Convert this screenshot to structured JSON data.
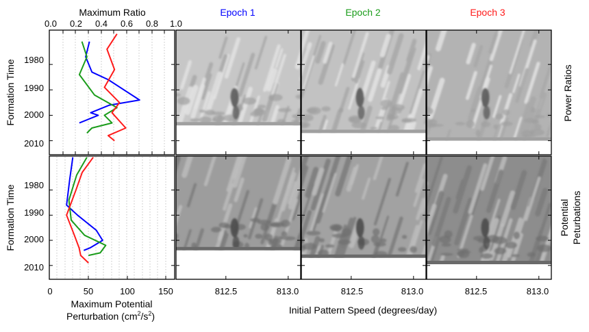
{
  "chart_data": {
    "type": "line",
    "column_titles": [
      {
        "label": "Epoch 1",
        "color": "#0000ff"
      },
      {
        "label": "Epoch 2",
        "color": "#1a9c1a"
      },
      {
        "label": "Epoch 3",
        "color": "#ff1a1a"
      }
    ],
    "row_labels": {
      "top": "Power Ratios",
      "bottom_line1": "Potential",
      "bottom_line2": "Peturbations"
    },
    "ylabel": "Formation Time",
    "y_ticks": [
      "1980",
      "1990",
      "2000",
      "2010"
    ],
    "ylim": [
      2015.5,
      1966.5
    ],
    "top_left_panel": {
      "xlabel_top": "Maximum Ratio",
      "xlim": [
        0,
        1
      ],
      "x_ticks": [
        "0.0",
        "0.2",
        "0.4",
        "0.6",
        "0.8",
        "1.0"
      ],
      "series": [
        {
          "color": "#0000ff",
          "x": [
            0.32,
            0.29,
            0.34,
            0.47,
            0.72,
            0.48,
            0.33,
            0.39,
            0.24
          ],
          "y": [
            1971,
            1977,
            1983,
            1986,
            1994,
            1996,
            1999,
            2000,
            2003
          ]
        },
        {
          "color": "#1a9c1a",
          "x": [
            0.26,
            0.3,
            0.24,
            0.36,
            0.54,
            0.44,
            0.5,
            0.34,
            0.3
          ],
          "y": [
            1971,
            1977,
            1984,
            1992,
            1997,
            2000,
            2003,
            2005,
            2007
          ]
        },
        {
          "color": "#ff1a1a",
          "x": [
            0.54,
            0.46,
            0.52,
            0.44,
            0.56,
            0.5,
            0.61,
            0.47,
            0.52
          ],
          "y": [
            1968,
            1974,
            1982,
            1989,
            1995,
            1999,
            2005,
            2008,
            2010
          ]
        }
      ]
    },
    "bottom_left_panel": {
      "xlabel_line1": "Maximum Potential",
      "xlabel_line2": "Perturbation (cm",
      "xlabel_sup1": "2",
      "xlabel_mid": "/s",
      "xlabel_sup2": "2",
      "xlabel_end": ")",
      "xlim": [
        0,
        160
      ],
      "x_ticks": [
        "0",
        "50",
        "100",
        "150"
      ],
      "series": [
        {
          "color": "#0000ff",
          "x": [
            30,
            26,
            22,
            36,
            60,
            68,
            52,
            44
          ],
          "y": [
            1967,
            1976,
            1986,
            1990,
            1996,
            2000,
            2003,
            2004
          ]
        },
        {
          "color": "#1a9c1a",
          "x": [
            48,
            35,
            25,
            28,
            45,
            72,
            65,
            50
          ],
          "y": [
            1967,
            1974,
            1984,
            1992,
            1998,
            2002,
            2005,
            2006
          ]
        },
        {
          "color": "#ff1a1a",
          "x": [
            56,
            42,
            34,
            22,
            32,
            38,
            40,
            50
          ],
          "y": [
            1967,
            1973,
            1980,
            1990,
            1998,
            2003,
            2006,
            2009
          ]
        }
      ]
    },
    "contour_panels": {
      "xlabel": "Initial Pattern Speed (degrees/day)",
      "x_ticks": [
        "812.5",
        "813.0"
      ]
    }
  }
}
